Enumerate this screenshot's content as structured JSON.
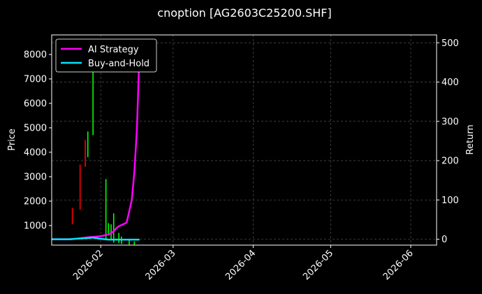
{
  "chart_data": {
    "type": "line",
    "title": "cnoption [AG2603C25200.SHF]",
    "background": "#000000",
    "grid": true,
    "legend_placement": "top-left",
    "xaxis": {
      "type": "date",
      "range": [
        "2026-01-13",
        "2026-06-11"
      ],
      "ticks": [
        "2026-02-01",
        "2026-03-01",
        "2026-04-01",
        "2026-05-01",
        "2026-06-01"
      ],
      "tick_labels": [
        "2026-02",
        "2026-03",
        "2026-04",
        "2026-05",
        "2026-06"
      ]
    },
    "yaxis_left": {
      "label": "Price",
      "range": [
        200,
        8800
      ],
      "ticks": [
        1000,
        2000,
        3000,
        4000,
        5000,
        6000,
        7000,
        8000
      ]
    },
    "yaxis_right": {
      "label": "Return",
      "range": [
        -15,
        520
      ],
      "ticks": [
        0,
        100,
        200,
        300,
        400,
        500
      ]
    },
    "candles": {
      "up_color": "#00ff00",
      "down_color": "#ff0000",
      "items": [
        {
          "date": "2026-01-21",
          "low": 1050,
          "high": 1720,
          "dir": "down"
        },
        {
          "date": "2026-01-24",
          "low": 1650,
          "high": 3500,
          "dir": "down"
        },
        {
          "date": "2026-01-26",
          "low": 3400,
          "high": 4500,
          "dir": "down"
        },
        {
          "date": "2026-01-27",
          "low": 3800,
          "high": 4850,
          "dir": "up"
        },
        {
          "date": "2026-01-29",
          "low": 4700,
          "high": 7400,
          "dir": "up"
        },
        {
          "date": "2026-02-01",
          "low": 7500,
          "high": 8500,
          "dir": "up"
        },
        {
          "date": "2026-02-03",
          "low": 400,
          "high": 2900,
          "dir": "up"
        },
        {
          "date": "2026-02-04",
          "low": 600,
          "high": 1100,
          "dir": "up"
        },
        {
          "date": "2026-02-05",
          "low": 450,
          "high": 1050,
          "dir": "up"
        },
        {
          "date": "2026-02-06",
          "low": 300,
          "high": 1500,
          "dir": "up"
        },
        {
          "date": "2026-02-08",
          "low": 280,
          "high": 700,
          "dir": "up"
        },
        {
          "date": "2026-02-09",
          "low": 250,
          "high": 550,
          "dir": "up"
        },
        {
          "date": "2026-02-12",
          "low": 220,
          "high": 450,
          "dir": "up"
        },
        {
          "date": "2026-02-14",
          "low": 200,
          "high": 350,
          "dir": "up"
        }
      ]
    },
    "series": [
      {
        "name": "AI Strategy",
        "color": "#ff00ff",
        "axis": "right",
        "x": [
          "2026-01-13",
          "2026-01-20",
          "2026-01-24",
          "2026-01-27",
          "2026-01-29",
          "2026-02-01",
          "2026-02-04",
          "2026-02-06",
          "2026-02-07",
          "2026-02-08",
          "2026-02-09",
          "2026-02-11",
          "2026-02-12",
          "2026-02-13",
          "2026-02-14",
          "2026-02-15",
          "2026-02-16"
        ],
        "y": [
          0,
          0,
          2,
          5,
          6,
          8,
          12,
          20,
          28,
          33,
          36,
          42,
          70,
          100,
          170,
          280,
          480
        ]
      },
      {
        "name": "Buy-and-Hold",
        "color": "#00e5ff",
        "axis": "right",
        "x": [
          "2026-01-13",
          "2026-01-20",
          "2026-01-24",
          "2026-01-27",
          "2026-01-29",
          "2026-02-01",
          "2026-02-04",
          "2026-02-08",
          "2026-02-12",
          "2026-02-16"
        ],
        "y": [
          0,
          0,
          2,
          3,
          4,
          1,
          -1,
          -1,
          -1,
          -1
        ]
      }
    ]
  }
}
